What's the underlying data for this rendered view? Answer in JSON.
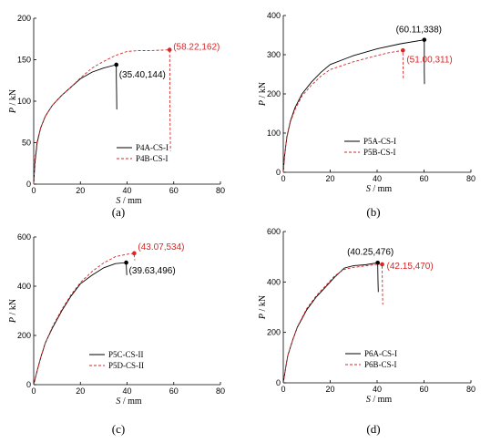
{
  "chart_data": [
    {
      "type": "line",
      "panel_label": "(a)",
      "xlabel": {
        "var": "S",
        "unit": " / mm"
      },
      "ylabel": {
        "var": "P",
        "unit": " / kN"
      },
      "xlim": [
        0,
        80
      ],
      "ylim": [
        0,
        200
      ],
      "xticks": [
        0,
        20,
        40,
        60,
        80
      ],
      "yticks": [
        0,
        50,
        100,
        150,
        200
      ],
      "legend_position": "bottom-right",
      "series": [
        {
          "name": "P4A-CS-I",
          "color": "#000000",
          "style": "solid",
          "points": [
            [
              0,
              0
            ],
            [
              0.5,
              25
            ],
            [
              1.5,
              50
            ],
            [
              3,
              68
            ],
            [
              5,
              82
            ],
            [
              8,
              95
            ],
            [
              12,
              107
            ],
            [
              16,
              117
            ],
            [
              20,
              127
            ],
            [
              25,
              135
            ],
            [
              30,
              140
            ],
            [
              35.4,
              144
            ],
            [
              35.4,
              130
            ],
            [
              35.5,
              110
            ],
            [
              35.6,
              90
            ]
          ],
          "peak": {
            "x": 35.4,
            "y": 144,
            "label": "(35.40,144)"
          }
        },
        {
          "name": "P4B-CS-I",
          "color": "#d62728",
          "style": "dashed",
          "points": [
            [
              0,
              0
            ],
            [
              0.5,
              30
            ],
            [
              1.5,
              52
            ],
            [
              3,
              68
            ],
            [
              5,
              82
            ],
            [
              8,
              95
            ],
            [
              12,
              107
            ],
            [
              16,
              117
            ],
            [
              20,
              128
            ],
            [
              25,
              140
            ],
            [
              30,
              148
            ],
            [
              35,
              155
            ],
            [
              40,
              160
            ],
            [
              45,
              161
            ],
            [
              50,
              161
            ],
            [
              55,
              161.5
            ],
            [
              58.22,
              162
            ],
            [
              58.3,
              140
            ],
            [
              58.3,
              100
            ],
            [
              58.5,
              60
            ],
            [
              58.6,
              40
            ]
          ],
          "peak": {
            "x": 58.22,
            "y": 162,
            "label": "(58.22,162)"
          }
        }
      ]
    },
    {
      "type": "line",
      "panel_label": "(b)",
      "xlabel": {
        "var": "S",
        "unit": " / mm"
      },
      "ylabel": {
        "var": "P",
        "unit": " / kN"
      },
      "xlim": [
        0,
        80
      ],
      "ylim": [
        0,
        400
      ],
      "xticks": [
        0,
        20,
        40,
        60,
        80
      ],
      "yticks": [
        0,
        100,
        200,
        300,
        400
      ],
      "legend_position": "bottom-right",
      "series": [
        {
          "name": "P5A-CS-I",
          "color": "#000000",
          "style": "solid",
          "points": [
            [
              0,
              0
            ],
            [
              0.5,
              40
            ],
            [
              1.5,
              90
            ],
            [
              3,
              130
            ],
            [
              5,
              165
            ],
            [
              8,
              200
            ],
            [
              12,
              230
            ],
            [
              16,
              255
            ],
            [
              20,
              275
            ],
            [
              30,
              298
            ],
            [
              40,
              315
            ],
            [
              50,
              328
            ],
            [
              60.11,
              338
            ],
            [
              60.1,
              300
            ],
            [
              60.1,
              260
            ],
            [
              60.2,
              225
            ]
          ],
          "peak": {
            "x": 60.11,
            "y": 338,
            "label": "(60.11,338)"
          }
        },
        {
          "name": "P5B-CS-I",
          "color": "#d62728",
          "style": "dashed",
          "points": [
            [
              0,
              0
            ],
            [
              0.5,
              40
            ],
            [
              1.5,
              88
            ],
            [
              3,
              128
            ],
            [
              5,
              160
            ],
            [
              8,
              195
            ],
            [
              12,
              222
            ],
            [
              16,
              245
            ],
            [
              20,
              262
            ],
            [
              30,
              282
            ],
            [
              40,
              298
            ],
            [
              45,
              305
            ],
            [
              51,
              311
            ],
            [
              51,
              290
            ],
            [
              51.1,
              260
            ],
            [
              51.2,
              235
            ]
          ],
          "peak": {
            "x": 51.0,
            "y": 311,
            "label": "(51.00,311)"
          }
        }
      ]
    },
    {
      "type": "line",
      "panel_label": "(c)",
      "xlabel": {
        "var": "S",
        "unit": " / mm"
      },
      "ylabel": {
        "var": "P",
        "unit": " / kN"
      },
      "xlim": [
        0,
        80
      ],
      "ylim": [
        0,
        600
      ],
      "xticks": [
        0,
        20,
        40,
        60,
        80
      ],
      "yticks": [
        0,
        200,
        400,
        600
      ],
      "legend_position": "bottom-right",
      "series": [
        {
          "name": "P5C-CS-II",
          "color": "#000000",
          "style": "solid",
          "points": [
            [
              0,
              0
            ],
            [
              1,
              40
            ],
            [
              3,
              110
            ],
            [
              5,
              170
            ],
            [
              8,
              230
            ],
            [
              12,
              300
            ],
            [
              16,
              360
            ],
            [
              20,
              410
            ],
            [
              25,
              445
            ],
            [
              30,
              475
            ],
            [
              35,
              492
            ],
            [
              39.63,
              496
            ],
            [
              39.7,
              480
            ],
            [
              39.8,
              460
            ],
            [
              39.9,
              445
            ]
          ],
          "peak": {
            "x": 39.63,
            "y": 496,
            "label": "(39.63,496)"
          }
        },
        {
          "name": "P5D-CS-II",
          "color": "#d62728",
          "style": "dashed",
          "points": [
            [
              0,
              0
            ],
            [
              1,
              40
            ],
            [
              3,
              110
            ],
            [
              5,
              170
            ],
            [
              8,
              235
            ],
            [
              12,
              305
            ],
            [
              16,
              365
            ],
            [
              20,
              415
            ],
            [
              25,
              460
            ],
            [
              30,
              495
            ],
            [
              35,
              520
            ],
            [
              40,
              530
            ],
            [
              43.07,
              534
            ],
            [
              43.1,
              520
            ],
            [
              43.3,
              505
            ]
          ],
          "peak": {
            "x": 43.07,
            "y": 534,
            "label": "(43.07,534)"
          }
        }
      ]
    },
    {
      "type": "line",
      "panel_label": "(d)",
      "xlabel": {
        "var": "S",
        "unit": " / mm"
      },
      "ylabel": {
        "var": "P",
        "unit": " / kN"
      },
      "xlim": [
        0,
        80
      ],
      "ylim": [
        0,
        600
      ],
      "xticks": [
        0,
        20,
        40,
        60,
        80
      ],
      "yticks": [
        0,
        200,
        400,
        600
      ],
      "legend_position": "bottom-right",
      "series": [
        {
          "name": "P6A-CS-I",
          "color": "#000000",
          "style": "solid",
          "points": [
            [
              0,
              0
            ],
            [
              1,
              60
            ],
            [
              2,
              110
            ],
            [
              4,
              170
            ],
            [
              6,
              220
            ],
            [
              10,
              290
            ],
            [
              14,
              340
            ],
            [
              18,
              380
            ],
            [
              22,
              420
            ],
            [
              26,
              455
            ],
            [
              30,
              465
            ],
            [
              35,
              468
            ],
            [
              40.25,
              476
            ],
            [
              40.3,
              440
            ],
            [
              40.4,
              400
            ],
            [
              40.5,
              360
            ]
          ],
          "peak": {
            "x": 40.25,
            "y": 476,
            "label": "(40.25,476)"
          }
        },
        {
          "name": "P6B-CS-I",
          "color": "#d62728",
          "style": "dashed",
          "points": [
            [
              0,
              0
            ],
            [
              1,
              60
            ],
            [
              2,
              110
            ],
            [
              4,
              170
            ],
            [
              6,
              222
            ],
            [
              10,
              295
            ],
            [
              14,
              345
            ],
            [
              18,
              385
            ],
            [
              22,
              425
            ],
            [
              26,
              450
            ],
            [
              30,
              458
            ],
            [
              36,
              465
            ],
            [
              40,
              470
            ],
            [
              42.15,
              470
            ],
            [
              42.2,
              420
            ],
            [
              42.3,
              360
            ],
            [
              42.4,
              310
            ]
          ],
          "peak": {
            "x": 42.15,
            "y": 470,
            "label": "(42.15,470)"
          }
        }
      ]
    }
  ]
}
